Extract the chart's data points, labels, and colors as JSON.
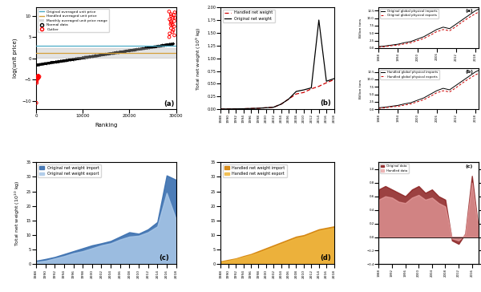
{
  "panel_a": {
    "title": "(a)",
    "xlabel": "Ranking",
    "ylabel": "log(unit price)",
    "xlim": [
      0,
      30000
    ],
    "ylim": [
      -12,
      12
    ],
    "blue_line_y": 3.0,
    "orange_line_y": 1.3,
    "band_low": 0.2,
    "band_high": 2.3
  },
  "panel_b": {
    "title": "(b)",
    "ylabel": "Total net weight (10^9 kg)",
    "years": [
      1988,
      1990,
      1992,
      1994,
      1996,
      1998,
      2000,
      2002,
      2004,
      2006,
      2008,
      2010,
      2012,
      2014,
      2016,
      2018
    ],
    "original": [
      0.005,
      0.006,
      0.008,
      0.01,
      0.015,
      0.02,
      0.03,
      0.04,
      0.1,
      0.2,
      0.35,
      0.38,
      0.42,
      1.75,
      0.55,
      0.6
    ],
    "handled": [
      0.005,
      0.006,
      0.008,
      0.01,
      0.015,
      0.02,
      0.03,
      0.04,
      0.1,
      0.2,
      0.3,
      0.33,
      0.4,
      0.45,
      0.52,
      0.58
    ]
  },
  "panel_c": {
    "title": "(c)",
    "ylabel": "Total net weight (10^10 kg)",
    "years": [
      1988,
      1990,
      1992,
      1994,
      1996,
      1998,
      2000,
      2002,
      2004,
      2006,
      2008,
      2010,
      2012,
      2014,
      2016,
      2018
    ],
    "import": [
      1.2,
      1.8,
      2.5,
      3.5,
      4.5,
      5.5,
      6.5,
      7.2,
      8.0,
      9.5,
      11.0,
      10.5,
      12.0,
      14.5,
      30.5,
      29.0
    ],
    "export": [
      0.8,
      1.2,
      2.0,
      2.8,
      3.8,
      4.5,
      5.5,
      6.5,
      7.2,
      8.5,
      9.5,
      9.8,
      11.0,
      13.0,
      24.5,
      15.5
    ]
  },
  "panel_d": {
    "title": "(d)",
    "ylabel": "Total net weight (10^10 kg)",
    "years": [
      1988,
      1990,
      1992,
      1994,
      1996,
      1998,
      2000,
      2002,
      2004,
      2006,
      2008,
      2010,
      2012,
      2014,
      2016,
      2018
    ],
    "import": [
      1.0,
      1.5,
      2.0,
      2.8,
      3.5,
      4.5,
      5.5,
      6.5,
      7.5,
      8.5,
      9.5,
      10.0,
      11.0,
      12.0,
      12.5,
      13.0
    ],
    "export": [
      0.8,
      1.2,
      1.8,
      2.5,
      3.2,
      4.0,
      5.0,
      6.0,
      7.0,
      8.0,
      9.0,
      9.5,
      10.5,
      11.5,
      12.0,
      12.5
    ]
  },
  "panel_ea": {
    "title": "(a)",
    "ylabel": "Billion tons",
    "years": [
      1988,
      1990,
      1992,
      1994,
      1996,
      1998,
      2000,
      2002,
      2004,
      2006,
      2008,
      2010,
      2012,
      2014,
      2016,
      2018,
      2019
    ],
    "imports": [
      0.5,
      0.7,
      1.0,
      1.3,
      1.8,
      2.2,
      3.0,
      3.8,
      5.0,
      6.2,
      7.0,
      6.5,
      8.0,
      9.5,
      11.0,
      12.5,
      13.0
    ],
    "exports": [
      0.3,
      0.5,
      0.8,
      1.0,
      1.4,
      1.8,
      2.5,
      3.2,
      4.3,
      5.5,
      6.2,
      5.8,
      7.2,
      8.8,
      10.2,
      11.5,
      12.0
    ]
  },
  "panel_eb": {
    "title": "(b)",
    "ylabel": "Billion tons",
    "years": [
      1988,
      1990,
      1992,
      1994,
      1996,
      1998,
      2000,
      2002,
      2004,
      2006,
      2008,
      2010,
      2012,
      2014,
      2016,
      2018,
      2019
    ],
    "imports": [
      0.5,
      0.7,
      1.0,
      1.3,
      1.8,
      2.2,
      3.0,
      3.8,
      5.0,
      6.2,
      7.0,
      6.5,
      8.0,
      9.5,
      11.0,
      12.5,
      13.0
    ],
    "exports": [
      0.3,
      0.5,
      0.8,
      1.0,
      1.4,
      1.8,
      2.5,
      3.2,
      4.3,
      5.5,
      6.2,
      5.8,
      7.2,
      8.8,
      10.2,
      11.5,
      12.0
    ]
  },
  "panel_f": {
    "title": "(c)",
    "years": [
      1988,
      1990,
      1992,
      1994,
      1996,
      1998,
      2000,
      2002,
      2004,
      2006,
      2008,
      2010,
      2012,
      2014,
      2016,
      2018
    ],
    "original": [
      0.7,
      0.75,
      0.7,
      0.65,
      0.6,
      0.7,
      0.75,
      0.65,
      0.7,
      0.6,
      0.55,
      -0.05,
      -0.1,
      0.05,
      0.9,
      0.1
    ],
    "handled": [
      0.55,
      0.6,
      0.58,
      0.52,
      0.5,
      0.58,
      0.62,
      0.55,
      0.58,
      0.5,
      0.45,
      -0.02,
      -0.05,
      0.04,
      0.8,
      0.08
    ],
    "ylim": [
      -0.4,
      1.1
    ]
  },
  "colors": {
    "blue_dark": "#3a6faf",
    "blue_light": "#aac8e8",
    "orange_dark": "#d4830a",
    "orange_light": "#f0b840",
    "red_dashed": "#cc0000",
    "gray_band": "#b0b0b0",
    "cyan_line": "#4bacc6",
    "tan_line": "#d4a03a",
    "dark_red_fill": "#8b2020",
    "light_red_fill": "#e8a0a0"
  }
}
